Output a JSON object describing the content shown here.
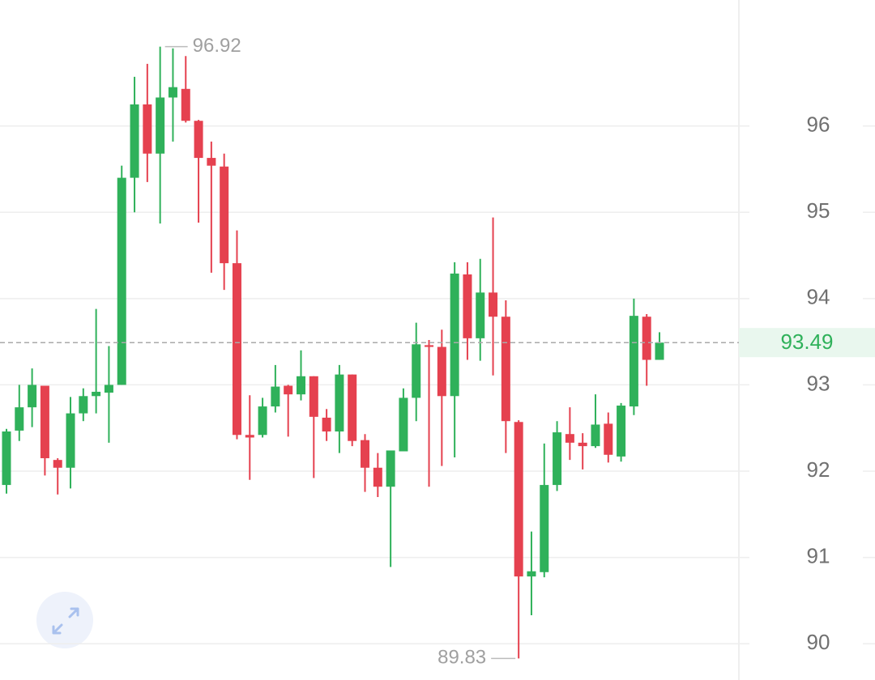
{
  "chart_data": {
    "type": "candlestick",
    "up_color": "#2fb15a",
    "down_color": "#e5414f",
    "open": [
      91.84,
      92.47,
      92.74,
      92.99,
      92.13,
      92.04,
      92.67,
      92.87,
      92.91,
      93.0,
      95.4,
      96.25,
      95.68,
      96.33,
      96.43,
      96.06,
      95.63,
      95.53,
      94.41,
      92.42,
      92.42,
      92.75,
      92.99,
      92.89,
      93.1,
      92.62,
      92.46,
      93.12,
      92.36,
      92.04,
      91.82,
      92.23,
      92.85,
      93.46,
      93.44,
      92.87,
      94.28,
      93.54,
      94.07,
      93.79,
      92.57,
      90.78,
      90.83,
      91.84,
      92.43,
      92.33,
      92.29,
      92.55,
      92.17,
      92.75,
      93.79,
      93.29
    ],
    "high": [
      92.49,
      93.0,
      93.19,
      92.99,
      92.15,
      92.86,
      92.96,
      93.88,
      93.45,
      95.54,
      96.57,
      96.72,
      96.92,
      96.9,
      96.81,
      96.07,
      95.82,
      95.68,
      94.79,
      92.88,
      92.85,
      93.23,
      93.0,
      93.4,
      93.1,
      92.72,
      93.23,
      93.12,
      92.43,
      92.21,
      92.24,
      92.96,
      93.72,
      93.52,
      93.64,
      94.42,
      94.42,
      94.46,
      94.94,
      93.98,
      92.59,
      91.3,
      92.32,
      92.58,
      92.74,
      92.44,
      92.89,
      92.68,
      92.79,
      94.0,
      93.82,
      93.61
    ],
    "low": [
      91.74,
      92.35,
      92.51,
      91.95,
      91.73,
      91.8,
      92.58,
      92.67,
      92.33,
      93.0,
      95.0,
      95.35,
      94.87,
      95.82,
      96.04,
      94.88,
      94.3,
      94.1,
      92.37,
      91.9,
      92.39,
      92.68,
      92.4,
      92.82,
      91.92,
      92.35,
      92.21,
      92.29,
      91.76,
      91.7,
      90.89,
      92.23,
      92.58,
      91.82,
      92.06,
      92.16,
      93.29,
      93.28,
      93.11,
      92.21,
      89.83,
      90.33,
      90.77,
      91.77,
      92.13,
      92.02,
      92.27,
      92.1,
      92.11,
      92.65,
      92.99,
      93.29
    ],
    "close": [
      92.46,
      92.74,
      93.0,
      92.15,
      92.04,
      92.67,
      92.87,
      92.92,
      93.0,
      95.4,
      96.25,
      95.68,
      96.33,
      96.45,
      96.06,
      95.63,
      95.54,
      94.41,
      92.42,
      92.39,
      92.75,
      92.98,
      92.89,
      93.1,
      92.63,
      92.46,
      93.12,
      92.35,
      92.04,
      91.82,
      92.24,
      92.85,
      93.47,
      93.44,
      92.87,
      94.29,
      93.54,
      94.07,
      93.79,
      92.58,
      90.78,
      90.84,
      91.84,
      92.45,
      92.33,
      92.29,
      92.54,
      92.19,
      92.76,
      93.8,
      93.29,
      93.49
    ],
    "ylim": [
      89.58,
      97.46
    ],
    "yticks": [
      90,
      91,
      92,
      93,
      94,
      95,
      96
    ],
    "grid": true
  }
}
